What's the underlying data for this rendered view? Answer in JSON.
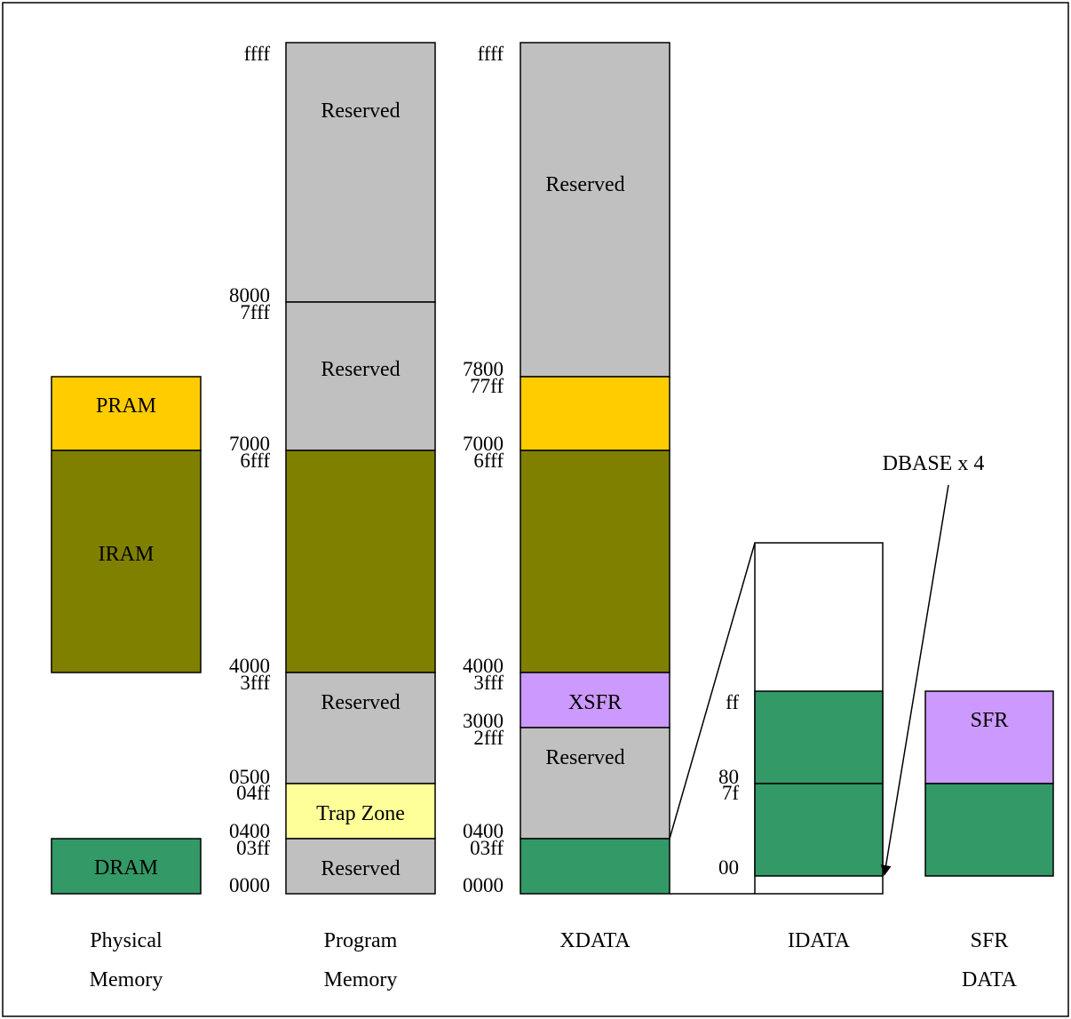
{
  "colors": {
    "reserved": "#c0c0c0",
    "iram": "#808000",
    "pram": "#ffcc00",
    "dram": "#339966",
    "xsfr": "#cc99ff",
    "trap": "#ffff99",
    "idata_empty": "#ffffff"
  },
  "physical": {
    "pram": "PRAM",
    "iram": "IRAM",
    "dram": "DRAM",
    "caption_line1": "Physical",
    "caption_line2": "Memory"
  },
  "program": {
    "reserved_top": "Reserved",
    "reserved_mid": "Reserved",
    "reserved_low": "Reserved",
    "trap": "Trap Zone",
    "reserved_bottom": "Reserved",
    "addr_ffff": "ffff",
    "addr_8000": "8000",
    "addr_7fff": "7fff",
    "addr_7000": "7000",
    "addr_6fff": "6fff",
    "addr_4000": "4000",
    "addr_3fff": "3fff",
    "addr_0500": "0500",
    "addr_04ff": "04ff",
    "addr_0400": "0400",
    "addr_03ff": "03ff",
    "addr_0000": "0000",
    "caption_line1": "Program",
    "caption_line2": "Memory"
  },
  "xdata": {
    "reserved_top": "Reserved",
    "xsfr": "XSFR",
    "reserved_low": "Reserved",
    "addr_ffff": "ffff",
    "addr_7800": "7800",
    "addr_77ff": "77ff",
    "addr_7000": "7000",
    "addr_6fff": "6fff",
    "addr_4000": "4000",
    "addr_3fff": "3fff",
    "addr_3000": "3000",
    "addr_2fff": "2fff",
    "addr_0400": "0400",
    "addr_03ff": "03ff",
    "addr_0000": "0000",
    "caption": "XDATA"
  },
  "idata": {
    "addr_ff": "ff",
    "addr_80": "80",
    "addr_7f": "7f",
    "addr_00": "00",
    "dbase_label": "DBASE x 4",
    "caption": "IDATA"
  },
  "sfr": {
    "label": "SFR",
    "caption_line1": "SFR",
    "caption_line2": "DATA"
  }
}
